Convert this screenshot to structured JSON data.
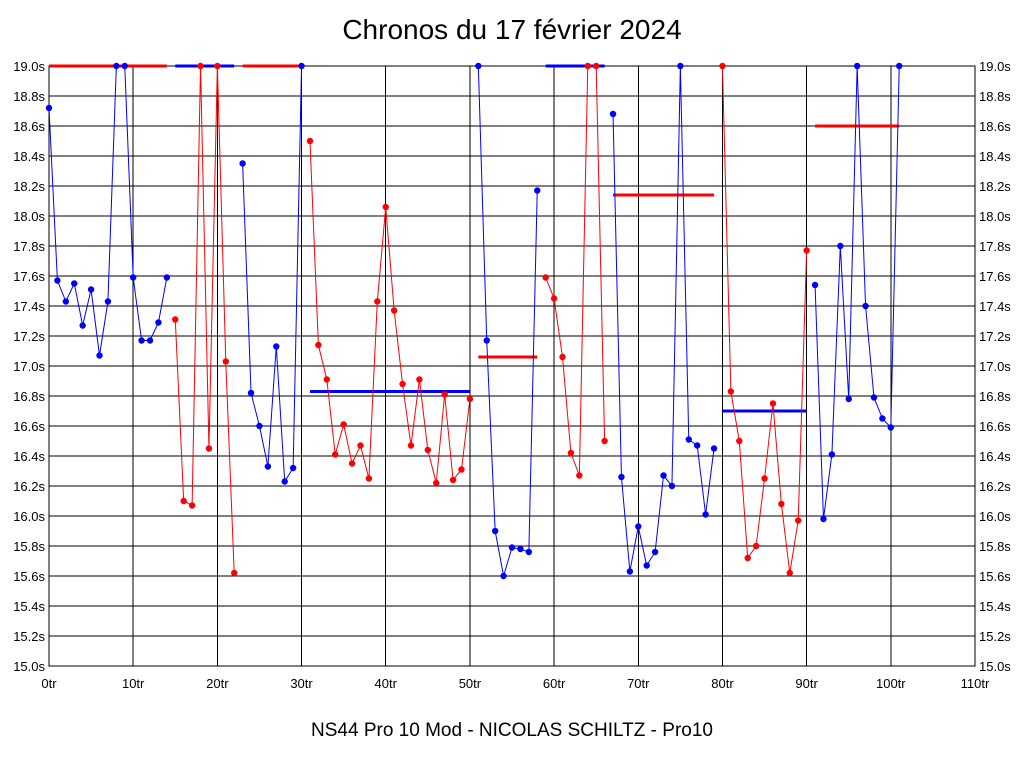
{
  "chart_data": {
    "type": "line",
    "title": "Chronos du 17 février 2024",
    "footer": "NS44 Pro 10 Mod - NICOLAS SCHILTZ - Pro10",
    "xlabel": "",
    "ylabel": "",
    "xlim": [
      0,
      110
    ],
    "ylim": [
      15.0,
      19.0
    ],
    "grid": true,
    "x_ticks": [
      0,
      10,
      20,
      30,
      40,
      50,
      60,
      70,
      80,
      90,
      100,
      110
    ],
    "x_tick_labels": [
      "0tr",
      "10tr",
      "20tr",
      "30tr",
      "40tr",
      "50tr",
      "60tr",
      "70tr",
      "80tr",
      "90tr",
      "100tr",
      "110tr"
    ],
    "y_ticks": [
      15.0,
      15.2,
      15.4,
      15.6,
      15.8,
      16.0,
      16.2,
      16.4,
      16.6,
      16.8,
      17.0,
      17.2,
      17.4,
      17.6,
      17.8,
      18.0,
      18.2,
      18.4,
      18.6,
      18.8,
      19.0
    ],
    "y_tick_labels": [
      "15.0s",
      "15.2s",
      "15.4s",
      "15.6s",
      "15.8s",
      "16.0s",
      "16.2s",
      "16.4s",
      "16.6s",
      "16.8s",
      "17.0s",
      "17.2s",
      "17.4s",
      "17.6s",
      "17.8s",
      "18.0s",
      "18.2s",
      "18.4s",
      "18.6s",
      "18.8s",
      "19.0s"
    ],
    "colors": {
      "blue": "#0000ff",
      "red": "#ff0000",
      "grid": "#000000"
    },
    "segments": [
      {
        "color": "blue",
        "x_start": 0,
        "values": [
          18.72,
          17.57,
          17.43,
          17.55,
          17.27,
          17.51,
          17.07,
          17.43,
          19.0,
          19.0,
          17.59,
          17.17,
          17.17,
          17.29,
          17.59
        ]
      },
      {
        "color": "red",
        "x_start": 15,
        "values": [
          17.31,
          16.1,
          16.07,
          19.0,
          16.45,
          19.0,
          17.03,
          15.62
        ]
      },
      {
        "color": "blue",
        "x_start": 23,
        "values": [
          18.35,
          16.82,
          16.6,
          16.33,
          17.13,
          16.23,
          16.32,
          19.0
        ]
      },
      {
        "color": "red",
        "x_start": 31,
        "values": [
          18.5,
          17.14,
          16.91,
          16.41,
          16.61,
          16.35,
          16.47,
          16.25,
          17.43,
          18.06,
          17.37,
          16.88,
          16.47,
          16.91,
          16.44,
          16.22,
          16.81,
          16.24,
          16.31,
          16.78
        ]
      },
      {
        "color": "blue",
        "x_start": 51,
        "values": [
          19.0,
          17.17,
          15.9,
          15.6,
          15.79,
          15.78,
          15.76,
          18.17
        ]
      },
      {
        "color": "red",
        "x_start": 59,
        "values": [
          17.59,
          17.45,
          17.06,
          16.42,
          16.27,
          19.0,
          19.0,
          16.5
        ]
      },
      {
        "color": "blue",
        "x_start": 67,
        "values": [
          18.68,
          16.26,
          15.63,
          15.93,
          15.67,
          15.76,
          16.27,
          16.2,
          19.0,
          16.51,
          16.47,
          16.01,
          16.45
        ]
      },
      {
        "color": "red",
        "x_start": 80,
        "values": [
          19.0,
          16.83,
          16.5,
          15.72,
          15.8,
          16.25,
          16.75,
          16.08,
          15.62,
          15.97,
          17.77
        ]
      },
      {
        "color": "blue",
        "x_start": 91,
        "values": [
          17.54,
          15.98,
          16.41,
          17.8,
          16.78,
          19.0,
          17.4,
          16.79,
          16.65,
          16.59,
          19.0
        ]
      }
    ],
    "average_lines": [
      {
        "color": "red",
        "x_from": 0,
        "x_to": 14,
        "y": 19.0
      },
      {
        "color": "blue",
        "x_from": 15,
        "x_to": 22,
        "y": 19.0
      },
      {
        "color": "red",
        "x_from": 23,
        "x_to": 30,
        "y": 19.0
      },
      {
        "color": "blue",
        "x_from": 31,
        "x_to": 50,
        "y": 16.83
      },
      {
        "color": "red",
        "x_from": 51,
        "x_to": 58,
        "y": 17.06
      },
      {
        "color": "blue",
        "x_from": 59,
        "x_to": 66,
        "y": 19.0
      },
      {
        "color": "red",
        "x_from": 67,
        "x_to": 79,
        "y": 18.14
      },
      {
        "color": "blue",
        "x_from": 80,
        "x_to": 90,
        "y": 16.7
      },
      {
        "color": "red",
        "x_from": 91,
        "x_to": 101,
        "y": 18.6
      }
    ]
  }
}
